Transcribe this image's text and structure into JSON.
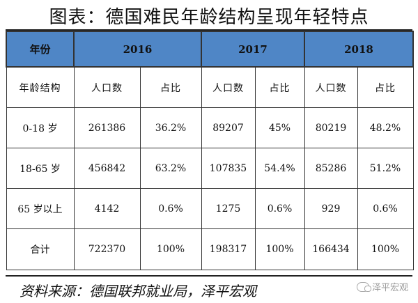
{
  "title": "图表：德国难民年龄结构呈现年轻特点",
  "header": {
    "year_label": "年份",
    "years": [
      "2016",
      "2017",
      "2018"
    ]
  },
  "subheader": {
    "age_label": "年龄结构",
    "population_label": "人口数",
    "share_label": "占比"
  },
  "rows": [
    {
      "group": "0-18 岁",
      "values": [
        "261386",
        "36.2%",
        "89207",
        "45%",
        "80219",
        "48.2%"
      ]
    },
    {
      "group": "18-65 岁",
      "values": [
        "456842",
        "63.2%",
        "107835",
        "54.4%",
        "85286",
        "51.2%"
      ]
    },
    {
      "group": "65 岁以上",
      "values": [
        "4142",
        "0.6%",
        "1275",
        "0.6%",
        "929",
        "0.6%"
      ]
    },
    {
      "group": "合计",
      "values": [
        "722370",
        "100%",
        "198317",
        "100%",
        "166434",
        "100%"
      ]
    }
  ],
  "source": "资料来源：德国联邦就业局，泽平宏观",
  "watermark": "泽平宏观"
}
